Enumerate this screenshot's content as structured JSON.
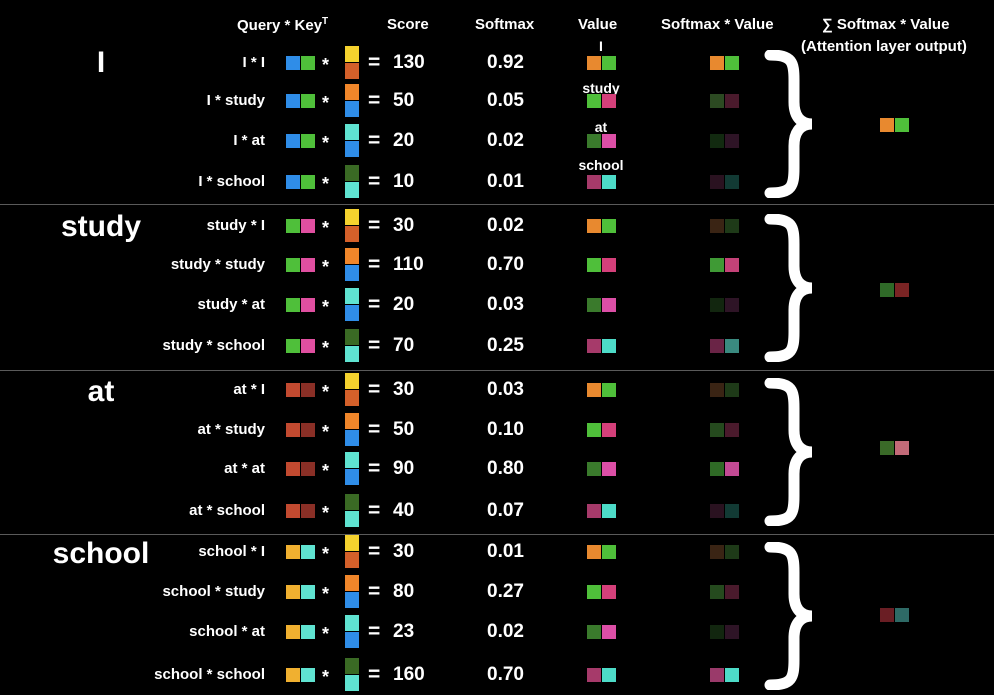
{
  "headers": {
    "query_key": "Query * Key",
    "query_key_sup": "T",
    "score": "Score",
    "softmax": "Softmax",
    "value": "Value",
    "softmax_value": "Softmax * Value",
    "sum_line1": "∑ Softmax * Value",
    "sum_line2": "(Attention layer output)"
  },
  "colors": {
    "I": [
      "#e8892f",
      "#4fbf3a"
    ],
    "study": [
      "#3f9a35",
      "#d4407a"
    ],
    "at": [
      "#3a7a2c",
      "#dc4fa6"
    ],
    "school": [
      "#a63a6a",
      "#4ddbc8"
    ]
  },
  "symbols": {
    "times": "*",
    "equals": "="
  },
  "value_labels": {
    "I": "I",
    "study": "study",
    "at": "at",
    "school": "school"
  },
  "groups": [
    {
      "word": "I",
      "output_colors": [
        "#e8892f",
        "#4fbf3a"
      ],
      "rows": [
        {
          "label": "I * I",
          "score": "130",
          "softmax": "0.92",
          "query_colors": [
            "#2f8de8",
            "#4fbf3a"
          ],
          "key_colors": [
            "#f5d22e",
            "#d4602a"
          ],
          "value_colors": [
            "#e8892f",
            "#4fbf3a"
          ],
          "weighted_colors": [
            "#e8892f",
            "#4fbf3a"
          ]
        },
        {
          "label": "I * study",
          "score": "50",
          "softmax": "0.05",
          "query_colors": [
            "#2f8de8",
            "#4fbf3a"
          ],
          "key_colors": [
            "#f0862a",
            "#2f8de8"
          ],
          "value_colors": [
            "#4fbf3a",
            "#d4407a"
          ],
          "weighted_colors": [
            "#2c4a22",
            "#4a1a2c"
          ]
        },
        {
          "label": "I * at",
          "score": "20",
          "softmax": "0.02",
          "query_colors": [
            "#2f8de8",
            "#4fbf3a"
          ],
          "key_colors": [
            "#5fe3d1",
            "#2f8de8"
          ],
          "value_colors": [
            "#3a7a2c",
            "#dc4fa6"
          ],
          "weighted_colors": [
            "#122a10",
            "#2e1426"
          ]
        },
        {
          "label": "I * school",
          "score": "10",
          "softmax": "0.01",
          "query_colors": [
            "#2f8de8",
            "#4fbf3a"
          ],
          "key_colors": [
            "#3a6a24",
            "#5fe3d1"
          ],
          "value_colors": [
            "#a63a6a",
            "#4ddbc8"
          ],
          "weighted_colors": [
            "#2a1220",
            "#123a34"
          ]
        }
      ]
    },
    {
      "word": "study",
      "output_colors": [
        "#2f6a28",
        "#7a2424"
      ],
      "rows": [
        {
          "label": "study * I",
          "score": "30",
          "softmax": "0.02",
          "query_colors": [
            "#4fbf3a",
            "#e04fa0"
          ],
          "key_colors": [
            "#f5d22e",
            "#d4602a"
          ],
          "value_colors": [
            "#e8892f",
            "#4fbf3a"
          ],
          "weighted_colors": [
            "#3a2414",
            "#1e3a18"
          ]
        },
        {
          "label": "study * study",
          "score": "110",
          "softmax": "0.70",
          "query_colors": [
            "#4fbf3a",
            "#e04fa0"
          ],
          "key_colors": [
            "#f0862a",
            "#2f8de8"
          ],
          "value_colors": [
            "#4fbf3a",
            "#d4407a"
          ],
          "weighted_colors": [
            "#3f9a35",
            "#c44278"
          ]
        },
        {
          "label": "study * at",
          "score": "20",
          "softmax": "0.03",
          "query_colors": [
            "#4fbf3a",
            "#e04fa0"
          ],
          "key_colors": [
            "#5fe3d1",
            "#2f8de8"
          ],
          "value_colors": [
            "#3a7a2c",
            "#dc4fa6"
          ],
          "weighted_colors": [
            "#12260f",
            "#2e1426"
          ]
        },
        {
          "label": "study * school",
          "score": "70",
          "softmax": "0.25",
          "query_colors": [
            "#4fbf3a",
            "#e04fa0"
          ],
          "key_colors": [
            "#3a6a24",
            "#5fe3d1"
          ],
          "value_colors": [
            "#a63a6a",
            "#4ddbc8"
          ],
          "weighted_colors": [
            "#6a2446",
            "#3a8a80"
          ]
        }
      ]
    },
    {
      "word": "at",
      "output_colors": [
        "#3a6a28",
        "#c26a78"
      ],
      "rows": [
        {
          "label": "at * I",
          "score": "30",
          "softmax": "0.03",
          "query_colors": [
            "#c24a30",
            "#8a2f26"
          ],
          "key_colors": [
            "#f5d22e",
            "#d4602a"
          ],
          "value_colors": [
            "#e8892f",
            "#4fbf3a"
          ],
          "weighted_colors": [
            "#3a2414",
            "#1e3a18"
          ]
        },
        {
          "label": "at * study",
          "score": "50",
          "softmax": "0.10",
          "query_colors": [
            "#c24a30",
            "#8a2f26"
          ],
          "key_colors": [
            "#f0862a",
            "#2f8de8"
          ],
          "value_colors": [
            "#4fbf3a",
            "#d4407a"
          ],
          "weighted_colors": [
            "#254a1e",
            "#4a1a2c"
          ]
        },
        {
          "label": "at * at",
          "score": "90",
          "softmax": "0.80",
          "query_colors": [
            "#c24a30",
            "#8a2f26"
          ],
          "key_colors": [
            "#5fe3d1",
            "#2f8de8"
          ],
          "value_colors": [
            "#3a7a2c",
            "#dc4fa6"
          ],
          "weighted_colors": [
            "#2f6a26",
            "#c24a94"
          ]
        },
        {
          "label": "at * school",
          "score": "40",
          "softmax": "0.07",
          "query_colors": [
            "#c24a30",
            "#8a2f26"
          ],
          "key_colors": [
            "#3a6a24",
            "#5fe3d1"
          ],
          "value_colors": [
            "#a63a6a",
            "#4ddbc8"
          ],
          "weighted_colors": [
            "#2a1220",
            "#123a34"
          ]
        }
      ]
    },
    {
      "word": "school",
      "output_colors": [
        "#6a1e24",
        "#2e6a66"
      ],
      "rows": [
        {
          "label": "school * I",
          "score": "30",
          "softmax": "0.01",
          "query_colors": [
            "#f0b030",
            "#5fe3d1"
          ],
          "key_colors": [
            "#f5d22e",
            "#d4602a"
          ],
          "value_colors": [
            "#e8892f",
            "#4fbf3a"
          ],
          "weighted_colors": [
            "#3a2414",
            "#1e3a18"
          ]
        },
        {
          "label": "school * study",
          "score": "80",
          "softmax": "0.27",
          "query_colors": [
            "#f0b030",
            "#5fe3d1"
          ],
          "key_colors": [
            "#f0862a",
            "#2f8de8"
          ],
          "value_colors": [
            "#4fbf3a",
            "#d4407a"
          ],
          "weighted_colors": [
            "#254a1e",
            "#4a1a2c"
          ]
        },
        {
          "label": "school * at",
          "score": "23",
          "softmax": "0.02",
          "query_colors": [
            "#f0b030",
            "#5fe3d1"
          ],
          "key_colors": [
            "#5fe3d1",
            "#2f8de8"
          ],
          "value_colors": [
            "#3a7a2c",
            "#dc4fa6"
          ],
          "weighted_colors": [
            "#12260f",
            "#2e1426"
          ]
        },
        {
          "label": "school * school",
          "score": "160",
          "softmax": "0.70",
          "query_colors": [
            "#f0b030",
            "#5fe3d1"
          ],
          "key_colors": [
            "#3a6a24",
            "#5fe3d1"
          ],
          "value_colors": [
            "#a63a6a",
            "#4ddbc8"
          ],
          "weighted_colors": [
            "#9a3a6a",
            "#4ddbc8"
          ]
        }
      ]
    }
  ]
}
